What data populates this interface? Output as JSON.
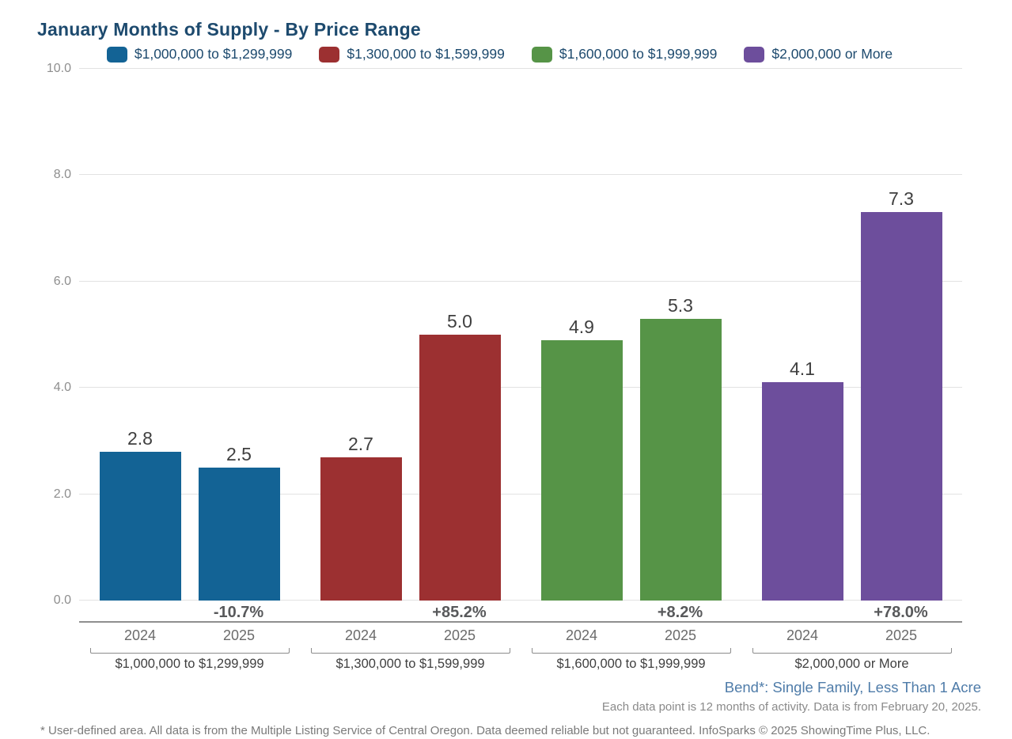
{
  "title": "January Months of Supply - By Price Range",
  "chart_data": {
    "type": "bar",
    "title": "January Months of Supply - By Price Range",
    "ylabel": "",
    "xlabel": "",
    "ylim": [
      0,
      10
    ],
    "y_ticks": [
      "0.0",
      "2.0",
      "4.0",
      "6.0",
      "8.0",
      "10.0"
    ],
    "grid": true,
    "legend_position": "top",
    "categories": [
      "2024",
      "2025"
    ],
    "groups": [
      {
        "name": "$1,000,000 to $1,299,999",
        "color": "#136395",
        "years": [
          "2024",
          "2025"
        ],
        "values": [
          2.8,
          2.5
        ],
        "value_labels": [
          "2.8",
          "2.5"
        ],
        "pct_change": "-10.7%"
      },
      {
        "name": "$1,300,000 to $1,599,999",
        "color": "#9c3031",
        "years": [
          "2024",
          "2025"
        ],
        "values": [
          2.7,
          5.0
        ],
        "value_labels": [
          "2.7",
          "5.0"
        ],
        "pct_change": "+85.2%"
      },
      {
        "name": "$1,600,000 to $1,999,999",
        "color": "#569447",
        "years": [
          "2024",
          "2025"
        ],
        "values": [
          4.9,
          5.3
        ],
        "value_labels": [
          "4.9",
          "5.3"
        ],
        "pct_change": "+8.2%"
      },
      {
        "name": "$2,000,000 or More",
        "color": "#6d4e9c",
        "years": [
          "2024",
          "2025"
        ],
        "values": [
          4.1,
          7.3
        ],
        "value_labels": [
          "4.1",
          "7.3"
        ],
        "pct_change": "+78.0%"
      }
    ]
  },
  "annotations": {
    "area_label": "Bend*: Single Family, Less Than 1 Acre",
    "data_note": "Each data point is 12 months of activity. Data is from February 20, 2025.",
    "footnote": "* User-defined area. All data is from the Multiple Listing Service of Central Oregon. Data deemed reliable but not guaranteed. InfoSparks © 2025 ShowingTime Plus, LLC."
  },
  "colors": {
    "title_text": "#1d4a6e",
    "legend_text": "#1d4a6e",
    "gridline": "#e2e2e2",
    "axis_line": "#8f8f8f",
    "value_text": "#3f3f3f",
    "pct_text": "#58595b",
    "year_text": "#6b6b6b",
    "area_label_text": "#4f7ca9",
    "note_text": "#8a8a8a"
  }
}
